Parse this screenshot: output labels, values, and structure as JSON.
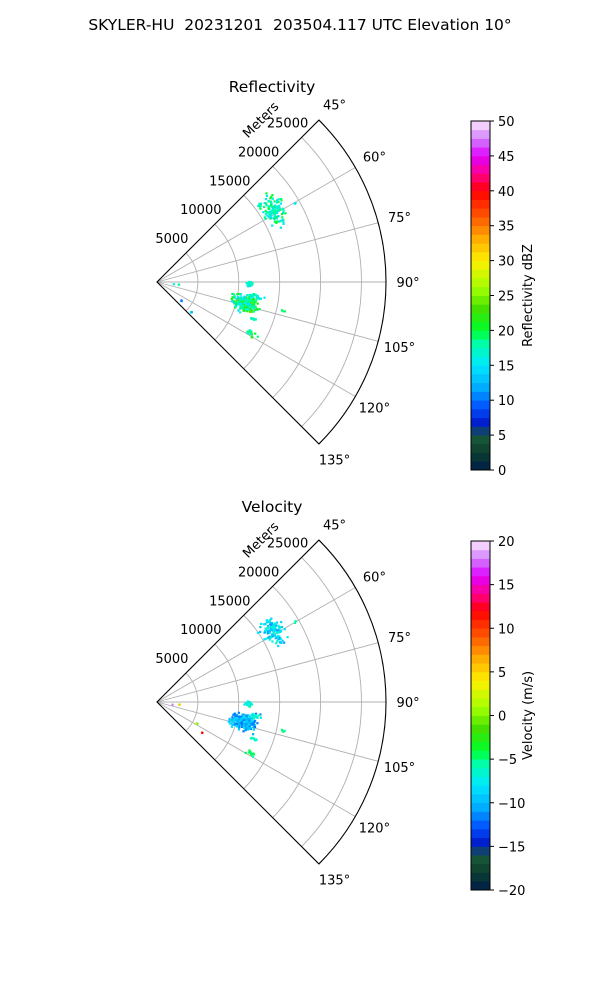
{
  "suptitle": "SKYLER-HU  20231201  203504.117 UTC Elevation 10°",
  "charts": [
    {
      "type": "polar-sector",
      "title": "Reflectivity",
      "radial_axis_label": "Meters",
      "r_ticks": [
        5000,
        10000,
        15000,
        20000,
        25000
      ],
      "r_max": 28000,
      "theta_ticks": [
        45,
        60,
        75,
        90,
        105,
        120,
        135
      ],
      "theta_tick_labels": [
        "45°",
        "60°",
        "75°",
        "90°",
        "105°",
        "120°",
        "135°"
      ],
      "theta_range_deg": [
        45,
        135
      ],
      "grid": true,
      "colorbar": {
        "label": "Reflectivity dBZ",
        "range": [
          0,
          50
        ],
        "ticks": [
          0,
          5,
          10,
          15,
          20,
          25,
          30,
          35,
          40,
          45,
          50
        ],
        "tick_labels": [
          "0",
          "5",
          "10",
          "15",
          "20",
          "25",
          "30",
          "35",
          "40",
          "45",
          "50"
        ]
      },
      "echo_regions": [
        {
          "center_az": 58,
          "center_r": 16600,
          "spread_az": 4.5,
          "spread_r": 1000,
          "count": 120,
          "value_range": [
            14,
            21
          ]
        },
        {
          "center_az": 53,
          "center_r": 15800,
          "spread_az": 1.0,
          "spread_r": 300,
          "count": 8,
          "value_range": [
            15,
            20
          ]
        },
        {
          "center_az": 59.5,
          "center_r": 19500,
          "spread_az": 0.3,
          "spread_r": 150,
          "count": 2,
          "value_range": [
            14,
            16
          ]
        },
        {
          "center_az": 90.5,
          "center_r": 11100,
          "spread_az": 1.2,
          "spread_r": 350,
          "count": 22,
          "value_range": [
            14,
            19
          ]
        },
        {
          "center_az": 103,
          "center_r": 11000,
          "spread_az": 4.0,
          "spread_r": 1200,
          "count": 230,
          "value_range": [
            14,
            24
          ]
        },
        {
          "center_az": 98,
          "center_r": 12000,
          "spread_az": 1.5,
          "spread_r": 700,
          "count": 20,
          "value_range": [
            14,
            21
          ]
        },
        {
          "center_az": 102.5,
          "center_r": 15700,
          "spread_az": 0.5,
          "spread_r": 150,
          "count": 4,
          "value_range": [
            18,
            21
          ]
        },
        {
          "center_az": 110.5,
          "center_r": 12500,
          "spread_az": 0.6,
          "spread_r": 350,
          "count": 8,
          "value_range": [
            16,
            21
          ]
        },
        {
          "center_az": 118.5,
          "center_r": 12800,
          "spread_az": 1.2,
          "spread_r": 700,
          "count": 12,
          "value_range": [
            16,
            22
          ]
        },
        {
          "center_az": 131,
          "center_r": 5500,
          "spread_az": 0.8,
          "spread_r": 200,
          "count": 3,
          "value_range": [
            12,
            16
          ]
        },
        {
          "center_az": 127,
          "center_r": 3500,
          "spread_az": 0.3,
          "spread_r": 100,
          "count": 2,
          "value_range": [
            8,
            12
          ]
        },
        {
          "center_az": 94,
          "center_r": 2600,
          "spread_az": 0.4,
          "spread_r": 80,
          "count": 2,
          "value_range": [
            17,
            21
          ]
        },
        {
          "center_az": 94,
          "center_r": 1900,
          "spread_az": 0.3,
          "spread_r": 50,
          "count": 1,
          "value_range": [
            15,
            17
          ]
        }
      ]
    },
    {
      "type": "polar-sector",
      "title": "Velocity",
      "radial_axis_label": "Meters",
      "r_ticks": [
        5000,
        10000,
        15000,
        20000,
        25000
      ],
      "r_max": 28000,
      "theta_ticks": [
        45,
        60,
        75,
        90,
        105,
        120,
        135
      ],
      "theta_tick_labels": [
        "45°",
        "60°",
        "75°",
        "90°",
        "105°",
        "120°",
        "135°"
      ],
      "theta_range_deg": [
        45,
        135
      ],
      "grid": true,
      "colorbar": {
        "label": "Velocity (m/s)",
        "range": [
          -20,
          20
        ],
        "ticks": [
          -20,
          -15,
          -10,
          -5,
          0,
          5,
          10,
          15,
          20
        ],
        "tick_labels": [
          "−20",
          "−15",
          "−10",
          "−5",
          "0",
          "5",
          "10",
          "15",
          "20"
        ]
      },
      "echo_regions": [
        {
          "center_az": 58,
          "center_r": 16600,
          "spread_az": 4.5,
          "spread_r": 1000,
          "count": 120,
          "value_range": [
            -11,
            -6
          ]
        },
        {
          "center_az": 59.5,
          "center_r": 19500,
          "spread_az": 0.3,
          "spread_r": 150,
          "count": 2,
          "value_range": [
            -6,
            -4
          ]
        },
        {
          "center_az": 90.5,
          "center_r": 11100,
          "spread_az": 1.2,
          "spread_r": 350,
          "count": 22,
          "value_range": [
            -8,
            -5
          ]
        },
        {
          "center_az": 102.5,
          "center_r": 10700,
          "spread_az": 4.0,
          "spread_r": 1200,
          "count": 230,
          "value_range": [
            -12,
            -8
          ]
        },
        {
          "center_az": 98,
          "center_r": 12000,
          "spread_az": 1.5,
          "spread_r": 700,
          "count": 20,
          "value_range": [
            -8,
            -5
          ]
        },
        {
          "center_az": 102.5,
          "center_r": 15700,
          "spread_az": 0.5,
          "spread_r": 150,
          "count": 4,
          "value_range": [
            -6,
            -4
          ]
        },
        {
          "center_az": 110.5,
          "center_r": 12500,
          "spread_az": 0.6,
          "spread_r": 350,
          "count": 8,
          "value_range": [
            -7,
            -5
          ]
        },
        {
          "center_az": 118.5,
          "center_r": 12800,
          "spread_az": 1.2,
          "spread_r": 700,
          "count": 12,
          "value_range": [
            -6,
            -3
          ]
        },
        {
          "center_az": 124,
          "center_r": 6500,
          "spread_az": 0.3,
          "spread_r": 80,
          "count": 2,
          "value_range": [
            10,
            12
          ]
        },
        {
          "center_az": 118,
          "center_r": 5500,
          "spread_az": 0.4,
          "spread_r": 150,
          "count": 2,
          "value_range": [
            -3,
            3
          ]
        },
        {
          "center_az": 94,
          "center_r": 2600,
          "spread_az": 0.4,
          "spread_r": 80,
          "count": 2,
          "value_range": [
            2,
            6
          ]
        },
        {
          "center_az": 96,
          "center_r": 1700,
          "spread_az": 0.3,
          "spread_r": 60,
          "count": 1,
          "value_range": [
            15,
            18
          ]
        }
      ]
    }
  ]
}
